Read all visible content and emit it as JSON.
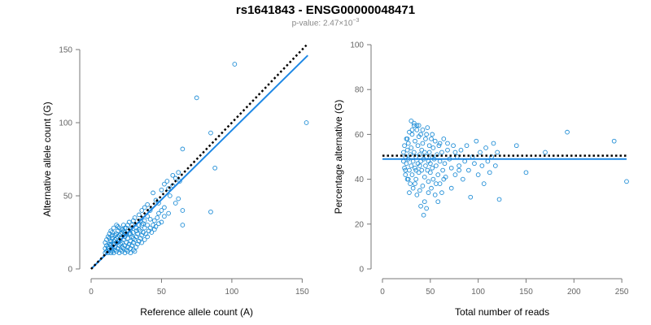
{
  "header": {
    "title": "rs1641843 - ENSG00000048471",
    "subtitle_prefix": "p-value: 2.47×10",
    "subtitle_exponent": "−3"
  },
  "colors": {
    "points": "#1f8dd6",
    "fit": "#1e88e5",
    "expected": "#000000"
  },
  "chart_data": [
    {
      "type": "scatter",
      "xlabel": "Reference allele count (A)",
      "ylabel": "Alternative allele count (G)",
      "xlim": [
        0,
        155
      ],
      "ylim": [
        0,
        150
      ],
      "xticks": [
        0,
        50,
        100,
        150
      ],
      "yticks": [
        0,
        50,
        100,
        150
      ],
      "fit_line": {
        "x": [
          0,
          154
        ],
        "y": [
          0,
          146
        ]
      },
      "expected_line": {
        "x": [
          0,
          153
        ],
        "y": [
          0,
          153
        ]
      },
      "points": [
        [
          10,
          11
        ],
        [
          10,
          14
        ],
        [
          10,
          18
        ],
        [
          11,
          12
        ],
        [
          11,
          20
        ],
        [
          12,
          11
        ],
        [
          12,
          15
        ],
        [
          12,
          22
        ],
        [
          13,
          13
        ],
        [
          13,
          17
        ],
        [
          13,
          24
        ],
        [
          14,
          11
        ],
        [
          14,
          16
        ],
        [
          14,
          19
        ],
        [
          14,
          26
        ],
        [
          15,
          12
        ],
        [
          15,
          14
        ],
        [
          15,
          21
        ],
        [
          15,
          23
        ],
        [
          16,
          11
        ],
        [
          16,
          17
        ],
        [
          16,
          28
        ],
        [
          17,
          13
        ],
        [
          17,
          15
        ],
        [
          17,
          20
        ],
        [
          18,
          12
        ],
        [
          18,
          18
        ],
        [
          18,
          24
        ],
        [
          18,
          30
        ],
        [
          19,
          14
        ],
        [
          19,
          22
        ],
        [
          19,
          26
        ],
        [
          20,
          11
        ],
        [
          20,
          16
        ],
        [
          20,
          19
        ],
        [
          20,
          28
        ],
        [
          21,
          13
        ],
        [
          21,
          21
        ],
        [
          21,
          24
        ],
        [
          22,
          12
        ],
        [
          22,
          15
        ],
        [
          22,
          18
        ],
        [
          22,
          27
        ],
        [
          23,
          14
        ],
        [
          23,
          20
        ],
        [
          23,
          30
        ],
        [
          24,
          11
        ],
        [
          24,
          16
        ],
        [
          24,
          22
        ],
        [
          24,
          25
        ],
        [
          25,
          13
        ],
        [
          25,
          18
        ],
        [
          25,
          28
        ],
        [
          26,
          12
        ],
        [
          26,
          15
        ],
        [
          26,
          21
        ],
        [
          27,
          17
        ],
        [
          27,
          24
        ],
        [
          27,
          32
        ],
        [
          28,
          11
        ],
        [
          28,
          14
        ],
        [
          28,
          19
        ],
        [
          28,
          27
        ],
        [
          29,
          16
        ],
        [
          29,
          22
        ],
        [
          29,
          30
        ],
        [
          30,
          13
        ],
        [
          30,
          18
        ],
        [
          30,
          25
        ],
        [
          31,
          12
        ],
        [
          31,
          20
        ],
        [
          31,
          35
        ],
        [
          32,
          15
        ],
        [
          32,
          22
        ],
        [
          32,
          28
        ],
        [
          33,
          17
        ],
        [
          33,
          24
        ],
        [
          34,
          19
        ],
        [
          34,
          30
        ],
        [
          35,
          21
        ],
        [
          35,
          26
        ],
        [
          35,
          33
        ],
        [
          36,
          18
        ],
        [
          36,
          23
        ],
        [
          37,
          25
        ],
        [
          37,
          31
        ],
        [
          38,
          20
        ],
        [
          38,
          28
        ],
        [
          39,
          24
        ],
        [
          40,
          22
        ],
        [
          40,
          30
        ],
        [
          40,
          36
        ],
        [
          41,
          26
        ],
        [
          42,
          28
        ],
        [
          42,
          34
        ],
        [
          43,
          25
        ],
        [
          44,
          30
        ],
        [
          45,
          27
        ],
        [
          45,
          33
        ],
        [
          46,
          29
        ],
        [
          47,
          35
        ],
        [
          48,
          31
        ],
        [
          48,
          38
        ],
        [
          50,
          32
        ],
        [
          50,
          40
        ],
        [
          52,
          36
        ],
        [
          52,
          42
        ],
        [
          55,
          38
        ],
        [
          55,
          55
        ],
        [
          56,
          50
        ],
        [
          58,
          57
        ],
        [
          60,
          45
        ],
        [
          60,
          62
        ],
        [
          62,
          48
        ],
        [
          63,
          60
        ],
        [
          65,
          30
        ],
        [
          65,
          40
        ],
        [
          65,
          82
        ],
        [
          52,
          58
        ],
        [
          48,
          45
        ],
        [
          44,
          52
        ],
        [
          40,
          44
        ],
        [
          38,
          42
        ],
        [
          36,
          40
        ],
        [
          34,
          37
        ],
        [
          30,
          33
        ],
        [
          26,
          30
        ],
        [
          24,
          28
        ],
        [
          22,
          25
        ],
        [
          20,
          23
        ],
        [
          18,
          21
        ],
        [
          16,
          19
        ],
        [
          14,
          17
        ],
        [
          12,
          14
        ],
        [
          46,
          47
        ],
        [
          50,
          54
        ],
        [
          54,
          60
        ],
        [
          58,
          64
        ],
        [
          62,
          66
        ],
        [
          42,
          40
        ],
        [
          75,
          117
        ],
        [
          85,
          39
        ],
        [
          85,
          93
        ],
        [
          88,
          69
        ],
        [
          102,
          140
        ],
        [
          153,
          100
        ],
        [
          36,
          30
        ],
        [
          32,
          26
        ],
        [
          28,
          24
        ],
        [
          25,
          24
        ],
        [
          23,
          26
        ],
        [
          21,
          17
        ],
        [
          19,
          29
        ],
        [
          17,
          23
        ],
        [
          15,
          25
        ],
        [
          13,
          21
        ],
        [
          11,
          16
        ],
        [
          30,
          21
        ],
        [
          34,
          27
        ],
        [
          38,
          33
        ]
      ]
    },
    {
      "type": "scatter",
      "xlabel": "Total number of reads",
      "ylabel": "Percentage alternative (G)",
      "xlim": [
        0,
        255
      ],
      "ylim": [
        0,
        100
      ],
      "xticks": [
        0,
        50,
        100,
        150,
        200,
        250
      ],
      "yticks": [
        0,
        20,
        40,
        60,
        80,
        100
      ],
      "fit_line": {
        "x": [
          0,
          255
        ],
        "y": [
          49,
          49
        ]
      },
      "expected_line": {
        "x": [
          0,
          255
        ],
        "y": [
          50.5,
          50.5
        ]
      },
      "points": [
        [
          22,
          48
        ],
        [
          22,
          52
        ],
        [
          23,
          45
        ],
        [
          23,
          55
        ],
        [
          24,
          50
        ],
        [
          24,
          42
        ],
        [
          25,
          58
        ],
        [
          25,
          47
        ],
        [
          26,
          53
        ],
        [
          26,
          40
        ],
        [
          27,
          49
        ],
        [
          27,
          56
        ],
        [
          28,
          44
        ],
        [
          28,
          61
        ],
        [
          29,
          51
        ],
        [
          29,
          38
        ],
        [
          30,
          46
        ],
        [
          30,
          54
        ],
        [
          31,
          60
        ],
        [
          31,
          42
        ],
        [
          32,
          48
        ],
        [
          32,
          36
        ],
        [
          33,
          52
        ],
        [
          33,
          64
        ],
        [
          34,
          45
        ],
        [
          34,
          57
        ],
        [
          35,
          40
        ],
        [
          35,
          50
        ],
        [
          36,
          33
        ],
        [
          36,
          62
        ],
        [
          37,
          47
        ],
        [
          37,
          55
        ],
        [
          38,
          43
        ],
        [
          38,
          59
        ],
        [
          39,
          51
        ],
        [
          39,
          35
        ],
        [
          40,
          48
        ],
        [
          40,
          60
        ],
        [
          41,
          44
        ],
        [
          41,
          53
        ],
        [
          42,
          37
        ],
        [
          42,
          56
        ],
        [
          43,
          49
        ],
        [
          43,
          24
        ],
        [
          44,
          52
        ],
        [
          44,
          41
        ],
        [
          45,
          58
        ],
        [
          45,
          46
        ],
        [
          46,
          27
        ],
        [
          46,
          50
        ],
        [
          47,
          44
        ],
        [
          47,
          63
        ],
        [
          48,
          48
        ],
        [
          48,
          39
        ],
        [
          49,
          55
        ],
        [
          49,
          52
        ],
        [
          50,
          43
        ],
        [
          50,
          47
        ],
        [
          51,
          58
        ],
        [
          51,
          36
        ],
        [
          52,
          50
        ],
        [
          52,
          45
        ],
        [
          53,
          40
        ],
        [
          53,
          54
        ],
        [
          54,
          49
        ],
        [
          55,
          33
        ],
        [
          55,
          57
        ],
        [
          56,
          46
        ],
        [
          57,
          51
        ],
        [
          58,
          42
        ],
        [
          59,
          55
        ],
        [
          60,
          48
        ],
        [
          60,
          38
        ],
        [
          62,
          52
        ],
        [
          63,
          44
        ],
        [
          64,
          58
        ],
        [
          65,
          47
        ],
        [
          66,
          41
        ],
        [
          68,
          53
        ],
        [
          70,
          49
        ],
        [
          72,
          45
        ],
        [
          74,
          55
        ],
        [
          76,
          42
        ],
        [
          78,
          50
        ],
        [
          80,
          46
        ],
        [
          82,
          53
        ],
        [
          84,
          40
        ],
        [
          86,
          48
        ],
        [
          88,
          55
        ],
        [
          90,
          44
        ],
        [
          92,
          32
        ],
        [
          94,
          50
        ],
        [
          96,
          47
        ],
        [
          98,
          57
        ],
        [
          100,
          42
        ],
        [
          102,
          52
        ],
        [
          104,
          46
        ],
        [
          106,
          38
        ],
        [
          108,
          54
        ],
        [
          110,
          48
        ],
        [
          112,
          43
        ],
        [
          114,
          50
        ],
        [
          116,
          56
        ],
        [
          118,
          46
        ],
        [
          120,
          52
        ],
        [
          122,
          31
        ],
        [
          140,
          55
        ],
        [
          150,
          43
        ],
        [
          170,
          52
        ],
        [
          193,
          61
        ],
        [
          242,
          57
        ],
        [
          255,
          39
        ],
        [
          30,
          66
        ],
        [
          33,
          65
        ],
        [
          36,
          64
        ],
        [
          40,
          28
        ],
        [
          44,
          30
        ],
        [
          26,
          58
        ],
        [
          28,
          34
        ],
        [
          34,
          38
        ],
        [
          38,
          64
        ],
        [
          42,
          62
        ],
        [
          46,
          60
        ],
        [
          48,
          34
        ],
        [
          52,
          60
        ],
        [
          56,
          38
        ],
        [
          60,
          56
        ],
        [
          64,
          40
        ],
        [
          68,
          56
        ],
        [
          72,
          36
        ],
        [
          76,
          52
        ],
        [
          80,
          44
        ],
        [
          58,
          30
        ],
        [
          62,
          34
        ],
        [
          24,
          44
        ],
        [
          27,
          40
        ],
        [
          31,
          62
        ],
        [
          35,
          44
        ],
        [
          39,
          46
        ]
      ]
    }
  ]
}
